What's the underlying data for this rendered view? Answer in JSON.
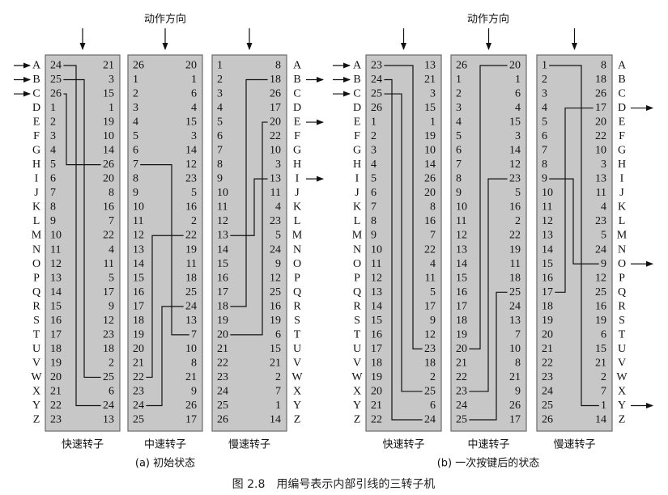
{
  "letters": [
    "A",
    "B",
    "C",
    "D",
    "E",
    "F",
    "G",
    "H",
    "I",
    "J",
    "K",
    "L",
    "M",
    "N",
    "O",
    "P",
    "Q",
    "R",
    "S",
    "T",
    "U",
    "V",
    "W",
    "X",
    "Y",
    "Z"
  ],
  "colors": {
    "rotor_fill": "#c7c7c7",
    "rotor_border": "#6a6a6a",
    "wire": "#111111"
  },
  "panels": [
    {
      "direction_label": "动作方向",
      "caption": "(a) 初始状态",
      "input_arrows": [
        "A",
        "B",
        "C"
      ],
      "output_arrows": [
        "B",
        "E",
        "I"
      ],
      "rotors": [
        {
          "name": "快速转子",
          "left": [
            24,
            25,
            26,
            1,
            2,
            3,
            4,
            5,
            6,
            7,
            8,
            9,
            10,
            11,
            12,
            13,
            14,
            15,
            16,
            17,
            18,
            19,
            20,
            21,
            22,
            23
          ],
          "right": [
            21,
            3,
            15,
            1,
            19,
            10,
            14,
            26,
            20,
            8,
            16,
            7,
            22,
            4,
            11,
            5,
            17,
            9,
            12,
            23,
            18,
            2,
            25,
            6,
            24,
            13
          ]
        },
        {
          "name": "中速转子",
          "left": [
            26,
            1,
            2,
            3,
            4,
            5,
            6,
            7,
            8,
            9,
            10,
            11,
            12,
            13,
            14,
            15,
            16,
            17,
            18,
            19,
            20,
            21,
            22,
            23,
            24,
            25
          ],
          "right": [
            20,
            1,
            6,
            4,
            15,
            3,
            14,
            12,
            23,
            5,
            16,
            2,
            22,
            19,
            11,
            18,
            25,
            24,
            13,
            7,
            10,
            8,
            21,
            9,
            26,
            17
          ]
        },
        {
          "name": "慢速转子",
          "left": [
            1,
            2,
            3,
            4,
            5,
            6,
            7,
            8,
            9,
            10,
            11,
            12,
            13,
            14,
            15,
            16,
            17,
            18,
            19,
            20,
            21,
            22,
            23,
            24,
            25,
            26
          ],
          "right": [
            8,
            18,
            26,
            17,
            20,
            22,
            10,
            3,
            13,
            11,
            4,
            23,
            5,
            24,
            9,
            12,
            25,
            16,
            19,
            6,
            15,
            21,
            2,
            7,
            1,
            14
          ]
        }
      ]
    },
    {
      "direction_label": "动作方向",
      "caption": "(b) 一次按键后的状态",
      "input_arrows": [
        "A",
        "B",
        "C"
      ],
      "output_arrows": [
        "D",
        "O",
        "Y"
      ],
      "rotors": [
        {
          "name": "快速转子",
          "left": [
            23,
            24,
            25,
            26,
            1,
            2,
            3,
            4,
            5,
            6,
            7,
            8,
            9,
            10,
            11,
            12,
            13,
            14,
            15,
            16,
            17,
            18,
            19,
            20,
            21,
            22
          ],
          "right": [
            13,
            21,
            3,
            15,
            1,
            19,
            10,
            14,
            26,
            20,
            8,
            16,
            7,
            22,
            4,
            11,
            5,
            17,
            9,
            12,
            23,
            18,
            2,
            25,
            6,
            24
          ]
        },
        {
          "name": "中速转子",
          "left": [
            26,
            1,
            2,
            3,
            4,
            5,
            6,
            7,
            8,
            9,
            10,
            11,
            12,
            13,
            14,
            15,
            16,
            17,
            18,
            19,
            20,
            21,
            22,
            23,
            24,
            25
          ],
          "right": [
            20,
            1,
            6,
            4,
            15,
            3,
            14,
            12,
            23,
            5,
            16,
            2,
            22,
            19,
            11,
            18,
            25,
            24,
            13,
            7,
            10,
            8,
            21,
            9,
            26,
            17
          ]
        },
        {
          "name": "慢速转子",
          "left": [
            1,
            2,
            3,
            4,
            5,
            6,
            7,
            8,
            9,
            10,
            11,
            12,
            13,
            14,
            15,
            16,
            17,
            18,
            19,
            20,
            21,
            22,
            23,
            24,
            25,
            26
          ],
          "right": [
            8,
            18,
            26,
            17,
            20,
            22,
            10,
            3,
            13,
            11,
            4,
            23,
            5,
            24,
            9,
            12,
            25,
            16,
            19,
            6,
            15,
            21,
            2,
            7,
            1,
            14
          ]
        }
      ]
    }
  ],
  "figure_caption": "图 2.8　用编号表示内部引线的三转子机"
}
